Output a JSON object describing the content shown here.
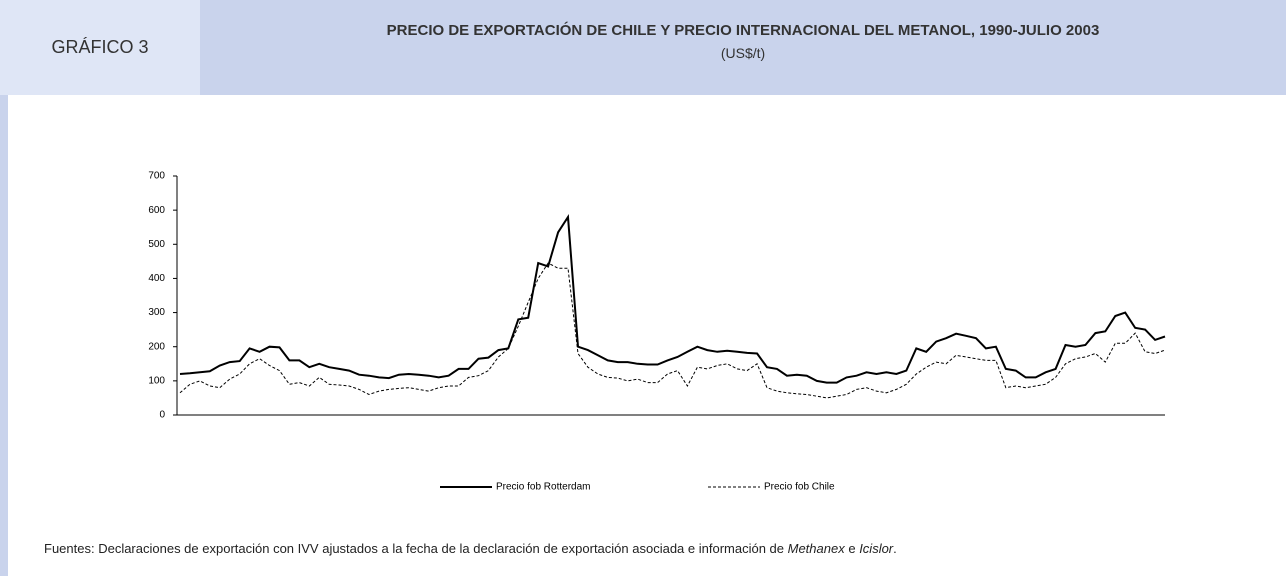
{
  "header": {
    "label": "GRÁFICO 3",
    "title": "PRECIO DE EXPORTACIÓN DE CHILE Y PRECIO INTERNACIONAL DEL METANOL, 1990-JULIO 2003",
    "subtitle": "(US$/t)"
  },
  "chart_data": {
    "type": "line",
    "ylim": [
      0,
      700
    ],
    "yticks": [
      0,
      100,
      200,
      300,
      400,
      500,
      600,
      700
    ],
    "legend": "bottom",
    "series": [
      {
        "name": "Precio fob Rotterdam",
        "color": "#000000",
        "dash": false,
        "values": [
          120,
          122,
          125,
          128,
          145,
          155,
          158,
          195,
          185,
          200,
          198,
          160,
          160,
          140,
          150,
          140,
          135,
          130,
          118,
          115,
          110,
          108,
          118,
          120,
          118,
          115,
          110,
          115,
          135,
          135,
          165,
          168,
          190,
          195,
          280,
          285,
          445,
          435,
          535,
          580,
          200,
          190,
          175,
          160,
          155,
          155,
          150,
          148,
          148,
          160,
          170,
          185,
          200,
          190,
          185,
          188,
          185,
          182,
          180,
          140,
          135,
          115,
          118,
          115,
          100,
          95,
          95,
          110,
          115,
          125,
          120,
          125,
          120,
          130,
          195,
          185,
          215,
          225,
          238,
          232,
          225,
          195,
          200,
          135,
          130,
          110,
          110,
          125,
          135,
          205,
          200,
          205,
          240,
          245,
          290,
          300,
          255,
          250,
          220,
          230
        ]
      },
      {
        "name": "Precio fob Chile",
        "color": "#000000",
        "dash": true,
        "values": [
          65,
          90,
          100,
          85,
          80,
          105,
          120,
          150,
          165,
          145,
          130,
          90,
          95,
          85,
          110,
          90,
          88,
          85,
          75,
          60,
          70,
          75,
          78,
          80,
          75,
          70,
          80,
          85,
          85,
          110,
          115,
          130,
          170,
          195,
          260,
          330,
          400,
          445,
          430,
          430,
          180,
          140,
          120,
          110,
          108,
          100,
          105,
          95,
          95,
          120,
          130,
          85,
          140,
          135,
          145,
          150,
          135,
          130,
          150,
          80,
          70,
          65,
          62,
          60,
          55,
          50,
          55,
          60,
          75,
          80,
          70,
          65,
          75,
          90,
          120,
          140,
          155,
          150,
          175,
          170,
          165,
          160,
          160,
          80,
          85,
          80,
          85,
          90,
          110,
          150,
          165,
          170,
          180,
          155,
          210,
          210,
          240,
          185,
          180,
          190
        ]
      }
    ]
  },
  "footer": {
    "text": "Fuentes: Declaraciones de exportación con IVV ajustados  a la fecha de la declaración de exportación asociada e información de ",
    "source1": "Methanex",
    "joiner": " e ",
    "source2": "Icislor",
    "end": "."
  }
}
